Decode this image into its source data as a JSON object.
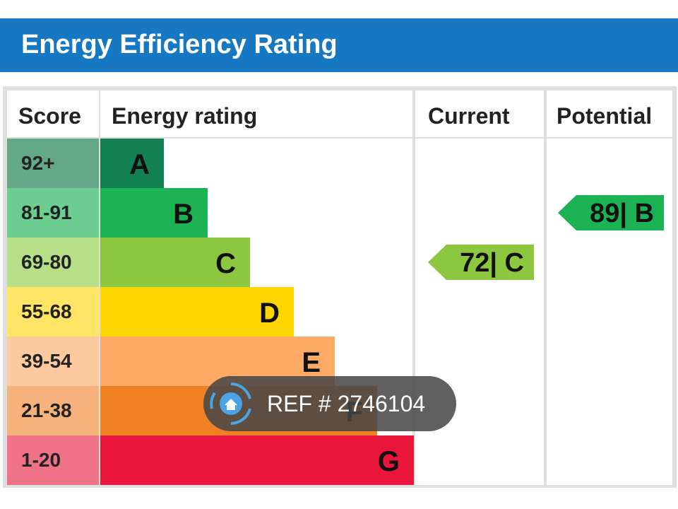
{
  "header": {
    "title": "Energy Efficiency Rating"
  },
  "chart_data": {
    "type": "table",
    "columns": [
      "Score",
      "Energy rating",
      "Current",
      "Potential"
    ],
    "bands": [
      {
        "score": "92+",
        "letter": "A",
        "color": "#138151",
        "score_bg": "#64a987"
      },
      {
        "score": "81-91",
        "letter": "B",
        "color": "#1cb355",
        "score_bg": "#6bcd8f"
      },
      {
        "score": "69-80",
        "letter": "C",
        "color": "#8dc63f",
        "score_bg": "#b7df88"
      },
      {
        "score": "55-68",
        "letter": "D",
        "color": "#ffd500",
        "score_bg": "#ffe466"
      },
      {
        "score": "39-54",
        "letter": "E",
        "color": "#fcaa65",
        "score_bg": "#fdca9f"
      },
      {
        "score": "21-38",
        "letter": "F",
        "color": "#ef8023",
        "score_bg": "#f5b27a"
      },
      {
        "score": "1-20",
        "letter": "G",
        "color": "#e9153b",
        "score_bg": "#f07287"
      }
    ],
    "current": {
      "value": 72,
      "band": "C",
      "label": "72| C",
      "color": "#8dc63f"
    },
    "potential": {
      "value": 89,
      "band": "B",
      "label": "89| B",
      "color": "#1cb355"
    }
  },
  "watermark": {
    "text": "REF # 2746104",
    "icon": "home-icon"
  }
}
